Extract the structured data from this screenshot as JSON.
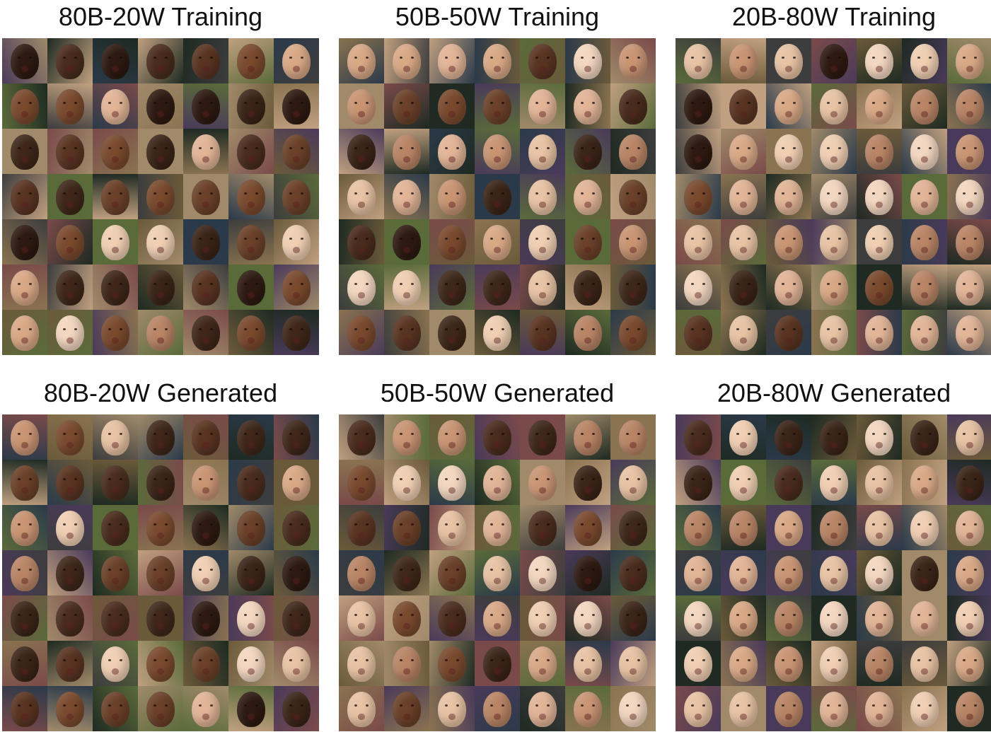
{
  "panels": [
    {
      "title": "80B-20W Training",
      "mix": "dark"
    },
    {
      "title": "50B-50W Training",
      "mix": "balanced"
    },
    {
      "title": "20B-80W Training",
      "mix": "light"
    },
    {
      "title": "80B-20W Generated",
      "mix": "dark"
    },
    {
      "title": "50B-50W Generated",
      "mix": "balanced"
    },
    {
      "title": "20B-80W Generated",
      "mix": "light"
    }
  ],
  "palette": {
    "dark_skin": [
      "#3b2418",
      "#4a2c1d",
      "#2e1a12",
      "#5a3422",
      "#6b4129",
      "#3f271a",
      "#7a4a2e"
    ],
    "light_skin": [
      "#e8c3a4",
      "#d9a987",
      "#f0cfb3",
      "#c99574",
      "#e2b597",
      "#b98566",
      "#f3d7c0"
    ],
    "backgrounds": [
      "#6b5a3a",
      "#2b3a4a",
      "#8a7350",
      "#3d3d3d",
      "#5a6b3a",
      "#7a4a4a",
      "#a08a6a",
      "#1e2a22",
      "#c0a080",
      "#4a3a5a"
    ]
  }
}
